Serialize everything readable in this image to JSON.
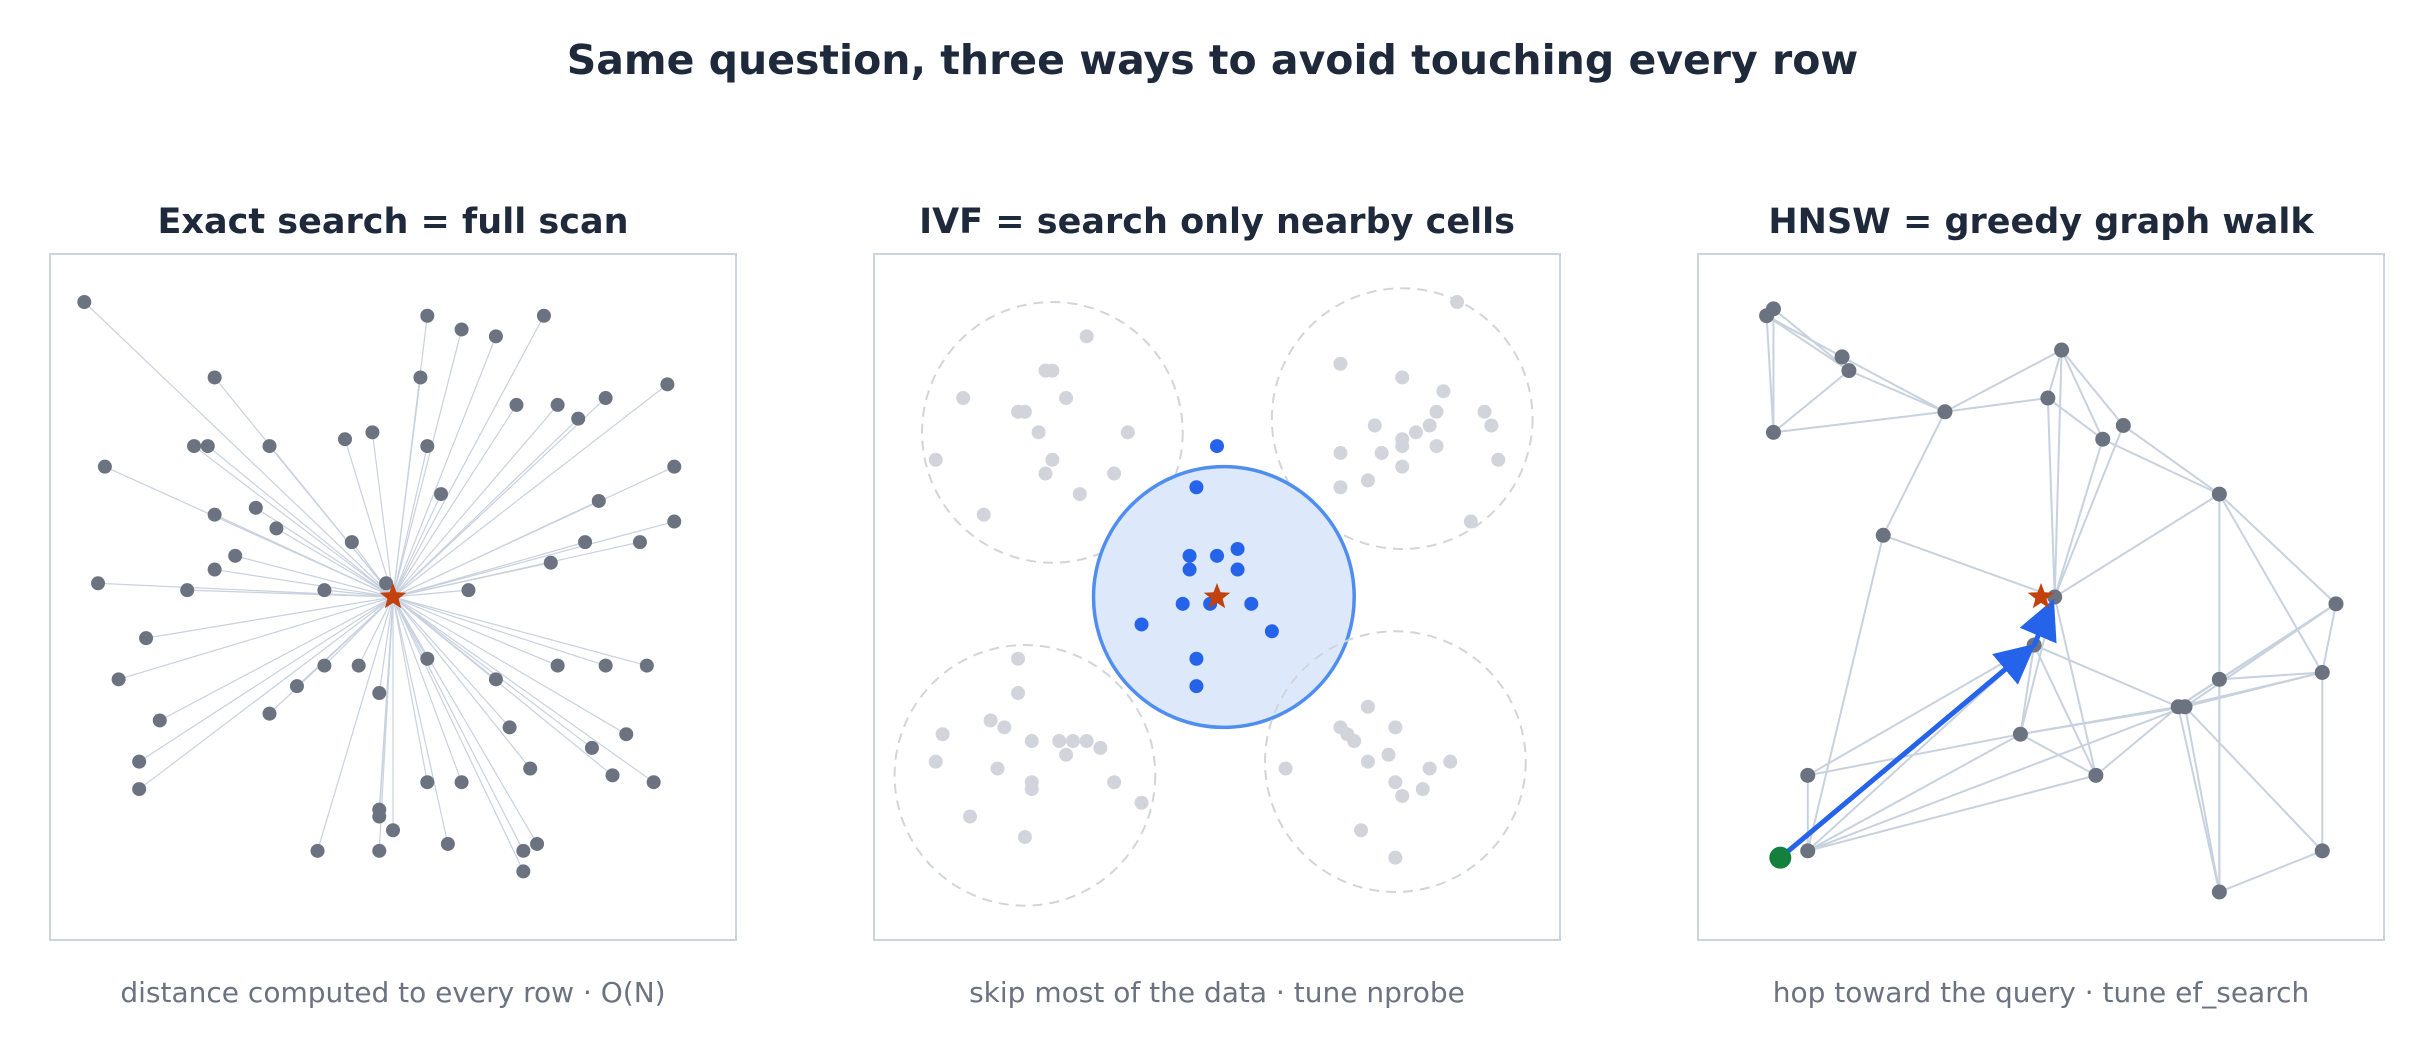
{
  "title": "Same question, three ways to avoid touching every row",
  "panels": [
    {
      "title": "Exact search = full scan",
      "caption": "distance computed to every row  ·  O(N)"
    },
    {
      "title": "IVF = search only nearby cells",
      "caption": "skip most of the data  ·  tune nprobe"
    },
    {
      "title": "HNSW = greedy graph walk",
      "caption": "hop toward the query  ·  tune ef_search"
    }
  ],
  "colors": {
    "point": "#6b7280",
    "edge": "#c8d1de",
    "faded_point": "#d1d5db",
    "active_point": "#2563eb",
    "active_cell_fill": "#dde9fb",
    "active_cell_stroke": "#4f8ef0",
    "query_star": "#c2410c",
    "start_node": "#15803d",
    "frame": "#cbd5e1"
  },
  "exact": {
    "query": [
      0.5,
      0.5
    ],
    "points": [
      [
        0.05,
        0.93
      ],
      [
        0.24,
        0.82
      ],
      [
        0.08,
        0.69
      ],
      [
        0.21,
        0.72
      ],
      [
        0.23,
        0.72
      ],
      [
        0.32,
        0.72
      ],
      [
        0.43,
        0.73
      ],
      [
        0.47,
        0.74
      ],
      [
        0.55,
        0.72
      ],
      [
        0.54,
        0.82
      ],
      [
        0.55,
        0.91
      ],
      [
        0.6,
        0.89
      ],
      [
        0.65,
        0.88
      ],
      [
        0.72,
        0.91
      ],
      [
        0.81,
        0.79
      ],
      [
        0.9,
        0.81
      ],
      [
        0.68,
        0.78
      ],
      [
        0.74,
        0.78
      ],
      [
        0.77,
        0.76
      ],
      [
        0.91,
        0.69
      ],
      [
        0.91,
        0.61
      ],
      [
        0.8,
        0.64
      ],
      [
        0.57,
        0.65
      ],
      [
        0.24,
        0.62
      ],
      [
        0.3,
        0.63
      ],
      [
        0.33,
        0.6
      ],
      [
        0.27,
        0.56
      ],
      [
        0.44,
        0.58
      ],
      [
        0.24,
        0.54
      ],
      [
        0.2,
        0.51
      ],
      [
        0.4,
        0.51
      ],
      [
        0.49,
        0.52
      ],
      [
        0.07,
        0.52
      ],
      [
        0.14,
        0.44
      ],
      [
        0.1,
        0.38
      ],
      [
        0.16,
        0.32
      ],
      [
        0.13,
        0.26
      ],
      [
        0.13,
        0.22
      ],
      [
        0.32,
        0.33
      ],
      [
        0.36,
        0.37
      ],
      [
        0.4,
        0.4
      ],
      [
        0.45,
        0.4
      ],
      [
        0.48,
        0.36
      ],
      [
        0.55,
        0.41
      ],
      [
        0.65,
        0.38
      ],
      [
        0.67,
        0.31
      ],
      [
        0.7,
        0.25
      ],
      [
        0.74,
        0.4
      ],
      [
        0.81,
        0.4
      ],
      [
        0.87,
        0.4
      ],
      [
        0.84,
        0.3
      ],
      [
        0.79,
        0.28
      ],
      [
        0.82,
        0.24
      ],
      [
        0.88,
        0.23
      ],
      [
        0.55,
        0.23
      ],
      [
        0.6,
        0.23
      ],
      [
        0.48,
        0.19
      ],
      [
        0.48,
        0.18
      ],
      [
        0.5,
        0.16
      ],
      [
        0.58,
        0.14
      ],
      [
        0.39,
        0.13
      ],
      [
        0.48,
        0.13
      ],
      [
        0.69,
        0.13
      ],
      [
        0.71,
        0.14
      ],
      [
        0.69,
        0.1
      ],
      [
        0.73,
        0.55
      ],
      [
        0.78,
        0.58
      ],
      [
        0.86,
        0.58
      ],
      [
        0.61,
        0.51
      ]
    ]
  },
  "ivf": {
    "query": [
      0.5,
      0.5
    ],
    "cells": [
      {
        "center": [
          0.26,
          0.74
        ],
        "r": 0.19,
        "active": false
      },
      {
        "center": [
          0.77,
          0.76
        ],
        "r": 0.19,
        "active": false
      },
      {
        "center": [
          0.51,
          0.5
        ],
        "r": 0.19,
        "active": true
      },
      {
        "center": [
          0.22,
          0.24
        ],
        "r": 0.19,
        "active": false
      },
      {
        "center": [
          0.76,
          0.26
        ],
        "r": 0.19,
        "active": false
      }
    ],
    "faded_points": [
      [
        0.31,
        0.88
      ],
      [
        0.25,
        0.83
      ],
      [
        0.26,
        0.83
      ],
      [
        0.28,
        0.79
      ],
      [
        0.13,
        0.79
      ],
      [
        0.21,
        0.77
      ],
      [
        0.22,
        0.77
      ],
      [
        0.24,
        0.74
      ],
      [
        0.37,
        0.74
      ],
      [
        0.09,
        0.7
      ],
      [
        0.26,
        0.7
      ],
      [
        0.25,
        0.68
      ],
      [
        0.35,
        0.68
      ],
      [
        0.3,
        0.65
      ],
      [
        0.16,
        0.62
      ],
      [
        0.85,
        0.93
      ],
      [
        0.68,
        0.84
      ],
      [
        0.77,
        0.82
      ],
      [
        0.83,
        0.8
      ],
      [
        0.89,
        0.77
      ],
      [
        0.9,
        0.75
      ],
      [
        0.82,
        0.77
      ],
      [
        0.81,
        0.75
      ],
      [
        0.73,
        0.75
      ],
      [
        0.77,
        0.73
      ],
      [
        0.79,
        0.74
      ],
      [
        0.74,
        0.71
      ],
      [
        0.77,
        0.72
      ],
      [
        0.82,
        0.72
      ],
      [
        0.68,
        0.71
      ],
      [
        0.72,
        0.67
      ],
      [
        0.77,
        0.69
      ],
      [
        0.68,
        0.66
      ],
      [
        0.91,
        0.7
      ],
      [
        0.87,
        0.61
      ],
      [
        0.21,
        0.41
      ],
      [
        0.21,
        0.36
      ],
      [
        0.17,
        0.32
      ],
      [
        0.19,
        0.31
      ],
      [
        0.1,
        0.3
      ],
      [
        0.23,
        0.29
      ],
      [
        0.27,
        0.29
      ],
      [
        0.29,
        0.29
      ],
      [
        0.31,
        0.29
      ],
      [
        0.33,
        0.28
      ],
      [
        0.09,
        0.26
      ],
      [
        0.18,
        0.25
      ],
      [
        0.28,
        0.27
      ],
      [
        0.35,
        0.23
      ],
      [
        0.23,
        0.22
      ],
      [
        0.23,
        0.23
      ],
      [
        0.39,
        0.2
      ],
      [
        0.14,
        0.18
      ],
      [
        0.22,
        0.15
      ],
      [
        0.72,
        0.34
      ],
      [
        0.76,
        0.31
      ],
      [
        0.68,
        0.31
      ],
      [
        0.69,
        0.3
      ],
      [
        0.7,
        0.29
      ],
      [
        0.6,
        0.25
      ],
      [
        0.75,
        0.27
      ],
      [
        0.81,
        0.25
      ],
      [
        0.72,
        0.26
      ],
      [
        0.8,
        0.22
      ],
      [
        0.84,
        0.26
      ],
      [
        0.76,
        0.23
      ],
      [
        0.77,
        0.21
      ],
      [
        0.71,
        0.16
      ],
      [
        0.76,
        0.12
      ]
    ],
    "active_points": [
      [
        0.5,
        0.72
      ],
      [
        0.47,
        0.66
      ],
      [
        0.53,
        0.57
      ],
      [
        0.46,
        0.56
      ],
      [
        0.5,
        0.56
      ],
      [
        0.46,
        0.54
      ],
      [
        0.53,
        0.54
      ],
      [
        0.45,
        0.49
      ],
      [
        0.49,
        0.49
      ],
      [
        0.55,
        0.49
      ],
      [
        0.39,
        0.46
      ],
      [
        0.58,
        0.45
      ],
      [
        0.47,
        0.41
      ],
      [
        0.47,
        0.37
      ]
    ]
  },
  "hnsw": {
    "query": [
      0.5,
      0.5
    ],
    "start": [
      0.12,
      0.12
    ],
    "nodes": [
      [
        0.11,
        0.92
      ],
      [
        0.1,
        0.91
      ],
      [
        0.21,
        0.85
      ],
      [
        0.22,
        0.83
      ],
      [
        0.11,
        0.74
      ],
      [
        0.36,
        0.77
      ],
      [
        0.53,
        0.86
      ],
      [
        0.51,
        0.79
      ],
      [
        0.59,
        0.73
      ],
      [
        0.62,
        0.75
      ],
      [
        0.76,
        0.65
      ],
      [
        0.27,
        0.59
      ],
      [
        0.52,
        0.5
      ],
      [
        0.93,
        0.49
      ],
      [
        0.49,
        0.43
      ],
      [
        0.91,
        0.39
      ],
      [
        0.76,
        0.38
      ],
      [
        0.7,
        0.34
      ],
      [
        0.71,
        0.34
      ],
      [
        0.47,
        0.3
      ],
      [
        0.58,
        0.24
      ],
      [
        0.16,
        0.24
      ],
      [
        0.16,
        0.13
      ],
      [
        0.91,
        0.13
      ],
      [
        0.76,
        0.07
      ]
    ],
    "edges": [
      [
        1,
        2
      ],
      [
        1,
        3
      ],
      [
        0,
        3
      ],
      [
        0,
        4
      ],
      [
        1,
        4
      ],
      [
        2,
        3
      ],
      [
        2,
        5
      ],
      [
        3,
        5
      ],
      [
        3,
        4
      ],
      [
        4,
        5
      ],
      [
        0,
        1
      ],
      [
        5,
        7
      ],
      [
        5,
        6
      ],
      [
        6,
        7
      ],
      [
        7,
        8
      ],
      [
        6,
        8
      ],
      [
        6,
        9
      ],
      [
        6,
        12
      ],
      [
        7,
        12
      ],
      [
        8,
        12
      ],
      [
        9,
        12
      ],
      [
        9,
        10
      ],
      [
        8,
        10
      ],
      [
        5,
        11
      ],
      [
        11,
        12
      ],
      [
        11,
        22
      ],
      [
        10,
        12
      ],
      [
        10,
        13
      ],
      [
        10,
        15
      ],
      [
        10,
        24
      ],
      [
        12,
        14
      ],
      [
        12,
        19
      ],
      [
        12,
        20
      ],
      [
        14,
        19
      ],
      [
        14,
        21
      ],
      [
        14,
        22
      ],
      [
        14,
        20
      ],
      [
        14,
        17
      ],
      [
        13,
        15
      ],
      [
        13,
        16
      ],
      [
        13,
        17
      ],
      [
        13,
        18
      ],
      [
        15,
        16
      ],
      [
        15,
        17
      ],
      [
        15,
        18
      ],
      [
        15,
        23
      ],
      [
        16,
        17
      ],
      [
        16,
        24
      ],
      [
        17,
        24
      ],
      [
        18,
        24
      ],
      [
        19,
        20
      ],
      [
        19,
        22
      ],
      [
        19,
        21
      ],
      [
        19,
        17
      ],
      [
        19,
        18
      ],
      [
        20,
        22
      ],
      [
        20,
        17
      ],
      [
        21,
        22
      ],
      [
        23,
        24
      ],
      [
        23,
        18
      ],
      [
        22,
        18
      ]
    ],
    "path": [
      [
        0.12,
        0.12
      ],
      [
        0.49,
        0.43
      ],
      [
        0.52,
        0.5
      ]
    ]
  }
}
